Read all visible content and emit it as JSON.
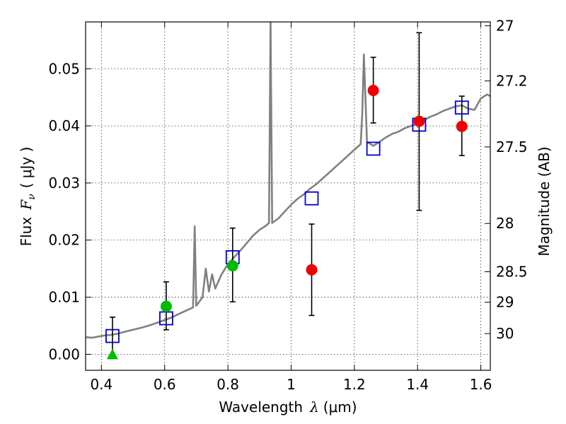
{
  "chart_data": {
    "type": "scatter",
    "xlabel_prefix": "Wavelength",
    "xlabel_symbol": "λ",
    "xlabel_unit": "(μm)",
    "ylabel_prefix": "Flux",
    "ylabel_symbol": "F",
    "ylabel_sub": "ν",
    "ylabel_unit": "( μJy )",
    "y2label": "Magnitude (AB)",
    "xlim": [
      0.35,
      1.63
    ],
    "ylim": [
      -0.0028,
      0.0582
    ],
    "x_ticks": [
      {
        "value": 0.4,
        "label": "0.4"
      },
      {
        "value": 0.6,
        "label": "0.6"
      },
      {
        "value": 0.8,
        "label": "0.8"
      },
      {
        "value": 1.0,
        "label": "1"
      },
      {
        "value": 1.2,
        "label": "1.2"
      },
      {
        "value": 1.4,
        "label": "1.4"
      },
      {
        "value": 1.6,
        "label": "1.6"
      }
    ],
    "y_ticks": [
      {
        "value": 0.0,
        "label": "0.00"
      },
      {
        "value": 0.01,
        "label": "0.01"
      },
      {
        "value": 0.02,
        "label": "0.02"
      },
      {
        "value": 0.03,
        "label": "0.03"
      },
      {
        "value": 0.04,
        "label": "0.04"
      },
      {
        "value": 0.05,
        "label": "0.05"
      }
    ],
    "y2_ticks": [
      {
        "mag": 27,
        "label": "27"
      },
      {
        "mag": 27.2,
        "label": "27.2"
      },
      {
        "mag": 27.5,
        "label": "27.5"
      },
      {
        "mag": 28,
        "label": "28"
      },
      {
        "mag": 28.5,
        "label": "28.5"
      },
      {
        "mag": 29,
        "label": "29"
      },
      {
        "mag": 30,
        "label": "30"
      }
    ],
    "grid": true,
    "spectrum": {
      "color": "#808080",
      "points": [
        [
          0.35,
          0.003
        ],
        [
          0.37,
          0.0029
        ],
        [
          0.39,
          0.0031
        ],
        [
          0.41,
          0.0033
        ],
        [
          0.43,
          0.0034
        ],
        [
          0.45,
          0.0036
        ],
        [
          0.47,
          0.0039
        ],
        [
          0.5,
          0.0043
        ],
        [
          0.53,
          0.0047
        ],
        [
          0.56,
          0.0052
        ],
        [
          0.59,
          0.0058
        ],
        [
          0.62,
          0.0064
        ],
        [
          0.65,
          0.0072
        ],
        [
          0.67,
          0.0077
        ],
        [
          0.69,
          0.0082
        ],
        [
          0.695,
          0.0224
        ],
        [
          0.7,
          0.0085
        ],
        [
          0.72,
          0.01
        ],
        [
          0.73,
          0.015
        ],
        [
          0.74,
          0.011
        ],
        [
          0.75,
          0.014
        ],
        [
          0.76,
          0.0115
        ],
        [
          0.78,
          0.014
        ],
        [
          0.8,
          0.0158
        ],
        [
          0.82,
          0.017
        ],
        [
          0.84,
          0.0182
        ],
        [
          0.86,
          0.0195
        ],
        [
          0.88,
          0.0208
        ],
        [
          0.9,
          0.0218
        ],
        [
          0.92,
          0.0225
        ],
        [
          0.93,
          0.023
        ],
        [
          0.935,
          0.0582
        ],
        [
          0.94,
          0.023
        ],
        [
          0.96,
          0.0238
        ],
        [
          0.98,
          0.025
        ],
        [
          1.0,
          0.0262
        ],
        [
          1.02,
          0.0272
        ],
        [
          1.04,
          0.028
        ],
        [
          1.06,
          0.029
        ],
        [
          1.08,
          0.0298
        ],
        [
          1.1,
          0.0308
        ],
        [
          1.12,
          0.0318
        ],
        [
          1.14,
          0.0328
        ],
        [
          1.16,
          0.0338
        ],
        [
          1.18,
          0.0348
        ],
        [
          1.2,
          0.0358
        ],
        [
          1.22,
          0.0368
        ],
        [
          1.225,
          0.042
        ],
        [
          1.23,
          0.0525
        ],
        [
          1.235,
          0.045
        ],
        [
          1.24,
          0.0372
        ],
        [
          1.26,
          0.0365
        ],
        [
          1.28,
          0.0372
        ],
        [
          1.3,
          0.038
        ],
        [
          1.32,
          0.0386
        ],
        [
          1.34,
          0.039
        ],
        [
          1.36,
          0.0396
        ],
        [
          1.38,
          0.04
        ],
        [
          1.4,
          0.0404
        ],
        [
          1.42,
          0.041
        ],
        [
          1.44,
          0.0416
        ],
        [
          1.46,
          0.042
        ],
        [
          1.48,
          0.0426
        ],
        [
          1.5,
          0.043
        ],
        [
          1.52,
          0.0434
        ],
        [
          1.54,
          0.0436
        ],
        [
          1.56,
          0.043
        ],
        [
          1.58,
          0.0428
        ],
        [
          1.6,
          0.0448
        ],
        [
          1.62,
          0.0455
        ],
        [
          1.63,
          0.0452
        ]
      ]
    },
    "model_points": {
      "marker": "square",
      "color": "#0000cc",
      "points": [
        {
          "x": 0.435,
          "y": 0.0032
        },
        {
          "x": 0.605,
          "y": 0.0063
        },
        {
          "x": 0.815,
          "y": 0.017
        },
        {
          "x": 1.065,
          "y": 0.0273
        },
        {
          "x": 1.26,
          "y": 0.036
        },
        {
          "x": 1.405,
          "y": 0.0402
        },
        {
          "x": 1.54,
          "y": 0.0432
        }
      ]
    },
    "observed_green": {
      "color": "#00bb00",
      "points": [
        {
          "x": 0.605,
          "y": 0.0084,
          "yerr_low": 0.0043,
          "yerr_high": 0.0127
        },
        {
          "x": 0.815,
          "y": 0.0155,
          "yerr_low": 0.0092,
          "yerr_high": 0.0221
        }
      ]
    },
    "upper_limit_green": {
      "marker": "triangle",
      "color": "#00bb00",
      "points": [
        {
          "x": 0.435,
          "y": 0.0,
          "yerr_high": 0.0065
        }
      ]
    },
    "observed_red": {
      "color": "#ee0000",
      "points": [
        {
          "x": 1.065,
          "y": 0.0148,
          "yerr_low": 0.0068,
          "yerr_high": 0.0228
        },
        {
          "x": 1.26,
          "y": 0.0462,
          "yerr_low": 0.0405,
          "yerr_high": 0.052
        },
        {
          "x": 1.405,
          "y": 0.0408,
          "yerr_low": 0.0252,
          "yerr_high": 0.0563
        },
        {
          "x": 1.54,
          "y": 0.0399,
          "yerr_low": 0.0348,
          "yerr_high": 0.0452
        }
      ]
    }
  }
}
